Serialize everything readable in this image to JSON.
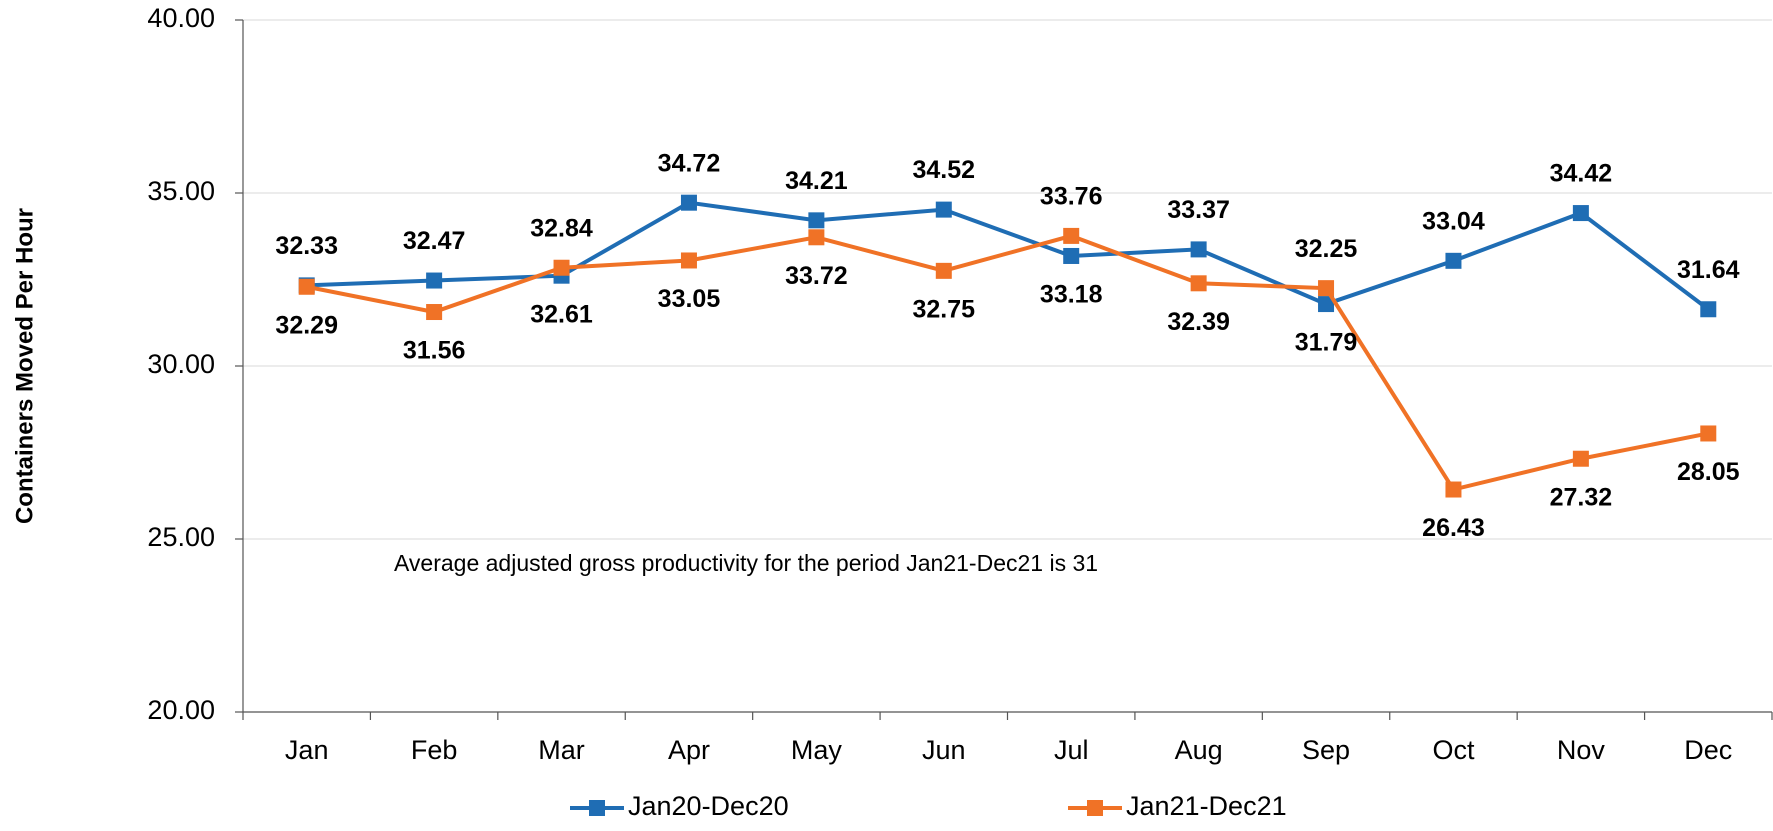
{
  "chart_data": {
    "type": "line",
    "y_label": "Containers Moved Per Hour",
    "annotation": "Average adjusted gross productivity for the period Jan21-Dec21 is 31",
    "categories": [
      "Jan",
      "Feb",
      "Mar",
      "Apr",
      "May",
      "Jun",
      "Jul",
      "Aug",
      "Sep",
      "Oct",
      "Nov",
      "Dec"
    ],
    "series": [
      {
        "name": "Jan20-Dec20",
        "color": "#1f6db4",
        "label_color": "#1a2a4c",
        "values": [
          32.33,
          32.47,
          32.61,
          34.72,
          34.21,
          34.52,
          33.18,
          33.37,
          31.79,
          33.04,
          34.42,
          31.64
        ]
      },
      {
        "name": "Jan21-Dec21",
        "color": "#f07226",
        "label_color": "#f07226",
        "values": [
          32.29,
          31.56,
          32.84,
          33.05,
          33.72,
          32.75,
          33.76,
          32.39,
          32.25,
          26.43,
          27.32,
          28.05
        ]
      }
    ],
    "ylim": [
      20,
      40
    ],
    "yticks": [
      {
        "value": 20,
        "label": "20.00"
      },
      {
        "value": 25,
        "label": "25.00"
      },
      {
        "value": 30,
        "label": "30.00"
      },
      {
        "value": 35,
        "label": "35.00"
      },
      {
        "value": 40,
        "label": "40.00"
      }
    ],
    "grid": true,
    "legend": "bottom"
  }
}
